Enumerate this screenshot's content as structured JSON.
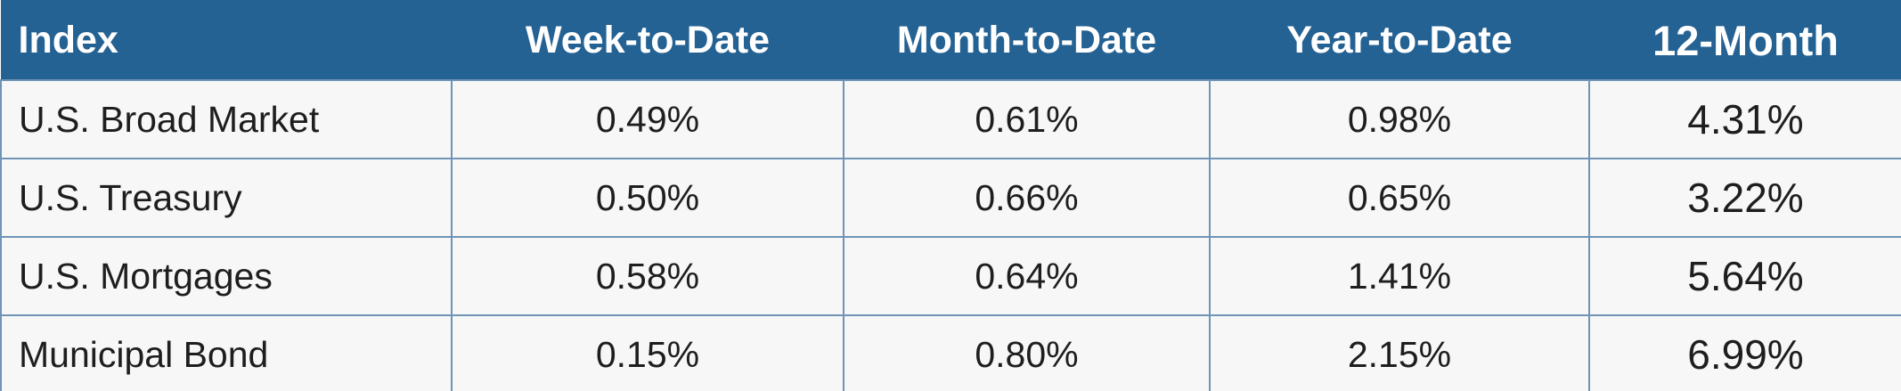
{
  "table": {
    "header": [
      "Index",
      "Week-to-Date",
      "Month-to-Date",
      "Year-to-Date",
      "12-Month"
    ],
    "rows": [
      [
        "U.S. Broad Market",
        "0.49%",
        "0.61%",
        "0.98%",
        "4.31%"
      ],
      [
        "U.S. Treasury",
        "0.50%",
        "0.66%",
        "0.65%",
        "3.22%"
      ],
      [
        "U.S. Mortgages",
        "0.58%",
        "0.64%",
        "1.41%",
        "5.64%"
      ],
      [
        "Municipal Bond",
        "0.15%",
        "0.80%",
        "2.15%",
        "6.99%"
      ]
    ]
  }
}
